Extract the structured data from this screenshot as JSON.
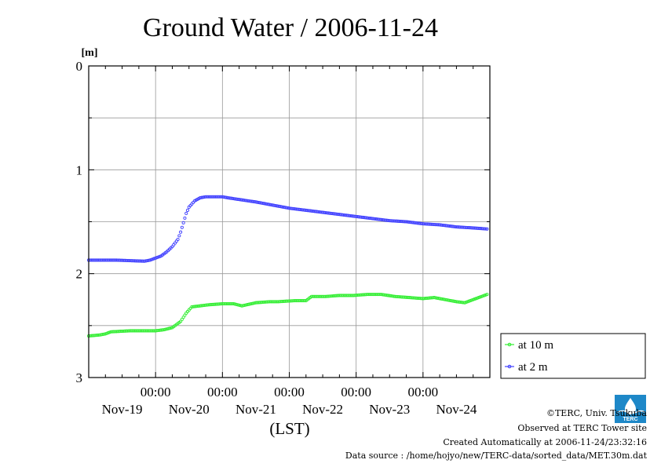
{
  "chart_data": {
    "type": "line",
    "title": "Ground Water / 2006-11-24",
    "y_unit": "[m]",
    "xlabel": "(LST)",
    "ylim": [
      0,
      3
    ],
    "y_inverted": true,
    "y_ticks": [
      "0",
      "1",
      "2",
      "3"
    ],
    "x_range_hours": [
      0,
      144
    ],
    "x_time_labels": [
      "00:00",
      "00:00",
      "00:00",
      "00:00",
      "00:00"
    ],
    "x_date_labels": [
      "Nov-19",
      "Nov-20",
      "Nov-21",
      "Nov-22",
      "Nov-23",
      "Nov-24"
    ],
    "grid": true,
    "legend_position": "right",
    "series": [
      {
        "name": "at 10 m",
        "color": "#33ee33",
        "x": [
          0,
          4,
          6,
          8,
          15,
          20,
          24,
          27,
          30,
          33,
          35,
          37,
          40,
          43,
          48,
          50,
          52,
          55,
          60,
          65,
          68,
          74,
          78,
          80,
          85,
          90,
          95,
          100,
          105,
          110,
          115,
          120,
          124,
          128,
          132,
          135,
          137,
          139,
          141,
          143
        ],
        "values": [
          2.6,
          2.59,
          2.58,
          2.56,
          2.55,
          2.55,
          2.55,
          2.54,
          2.52,
          2.46,
          2.38,
          2.32,
          2.31,
          2.3,
          2.29,
          2.29,
          2.29,
          2.31,
          2.28,
          2.27,
          2.27,
          2.26,
          2.26,
          2.22,
          2.22,
          2.21,
          2.21,
          2.2,
          2.2,
          2.22,
          2.23,
          2.24,
          2.23,
          2.25,
          2.27,
          2.28,
          2.26,
          2.24,
          2.22,
          2.2
        ]
      },
      {
        "name": "at 2 m",
        "color": "#4040ff",
        "x": [
          0,
          10,
          20,
          22,
          24,
          26,
          28,
          30,
          32,
          33,
          34,
          35,
          36,
          38,
          40,
          42,
          45,
          48,
          50,
          55,
          60,
          66,
          72,
          78,
          84,
          90,
          96,
          102,
          108,
          114,
          120,
          126,
          132,
          138,
          143
        ],
        "values": [
          1.87,
          1.87,
          1.88,
          1.87,
          1.85,
          1.83,
          1.79,
          1.74,
          1.67,
          1.6,
          1.51,
          1.42,
          1.36,
          1.3,
          1.27,
          1.26,
          1.26,
          1.26,
          1.27,
          1.29,
          1.31,
          1.34,
          1.37,
          1.39,
          1.41,
          1.43,
          1.45,
          1.47,
          1.49,
          1.5,
          1.52,
          1.53,
          1.55,
          1.56,
          1.57
        ]
      }
    ]
  },
  "credits": {
    "copyright": "©TERC, Univ. Tsukuba",
    "observed": "Observed at TERC Tower site",
    "created": "Created Automatically at 2006-11-24/23:32:16",
    "source": "Data source : /home/hojyo/new/TERC-data/sorted_data/MET.30m.dat"
  },
  "logo": {
    "text": "TERC",
    "color": "#1e88c8"
  }
}
